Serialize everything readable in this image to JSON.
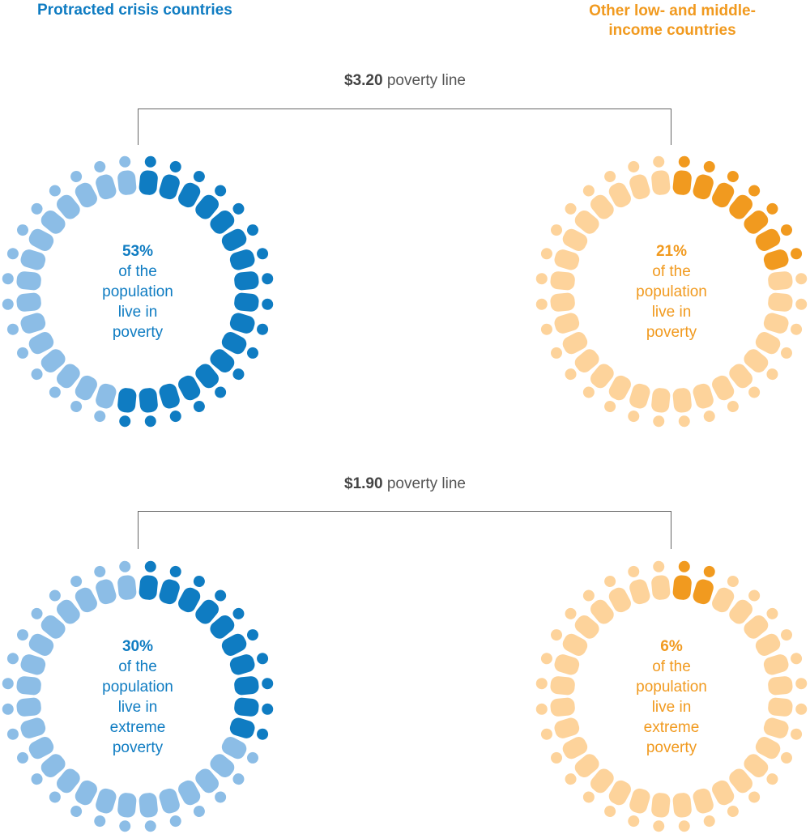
{
  "headers": {
    "left": "Protracted crisis countries",
    "right": "Other low- and middle-income countries"
  },
  "poverty_lines": [
    {
      "amount": "$3.20",
      "label": "poverty line"
    },
    {
      "amount": "$1.90",
      "label": "poverty line"
    }
  ],
  "centers": [
    {
      "pct": "53%",
      "line1": "of the",
      "line2": "population",
      "line3": "live in",
      "line4": "poverty"
    },
    {
      "pct": "21%",
      "line1": "of the",
      "line2": "population",
      "line3": "live in",
      "line4": "poverty"
    },
    {
      "pct": "30%",
      "line1": "of the",
      "line2": "population",
      "line3": "live in",
      "line4": "extreme",
      "line5": "poverty"
    },
    {
      "pct": "6%",
      "line1": "of the",
      "line2": "population",
      "line3": "live in",
      "line4": "extreme",
      "line5": "poverty"
    }
  ],
  "colors": {
    "blue_dark": "#0f7cc2",
    "blue_light": "#8cbde6",
    "orange_dark": "#f19a1f",
    "orange_light": "#fdd39b"
  },
  "chart_data": [
    {
      "type": "pie",
      "group": "Protracted crisis countries",
      "poverty_line": "$3.20",
      "value": 53,
      "total": 100
    },
    {
      "type": "pie",
      "group": "Other low- and middle-income countries",
      "poverty_line": "$3.20",
      "value": 21,
      "total": 100
    },
    {
      "type": "pie",
      "group": "Protracted crisis countries",
      "poverty_line": "$1.90",
      "value": 30,
      "total": 100
    },
    {
      "type": "pie",
      "group": "Other low- and middle-income countries",
      "poverty_line": "$1.90",
      "value": 6,
      "total": 100
    }
  ]
}
